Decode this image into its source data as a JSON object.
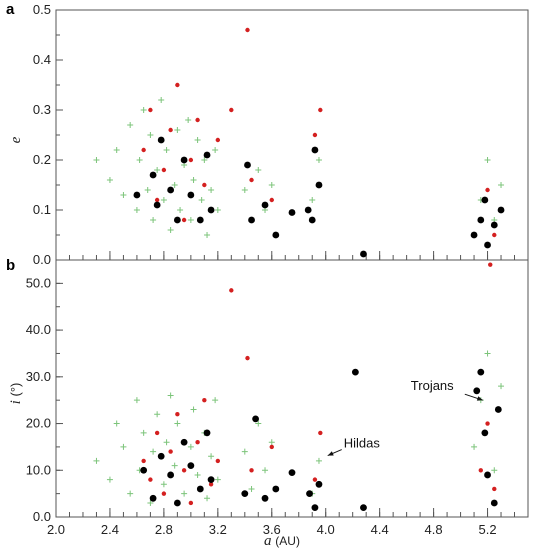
{
  "chart_data": [
    {
      "type": "scatter",
      "panel_label": "a",
      "ylabel": "e",
      "xlim": [
        2.0,
        5.5
      ],
      "ylim": [
        0.0,
        0.5
      ],
      "yticks": [
        "0.0",
        "0.1",
        "0.2",
        "0.3",
        "0.4",
        "0.5"
      ],
      "series": [
        {
          "color": "#7cc47a",
          "marker": "plus",
          "points": [
            [
              2.3,
              0.2
            ],
            [
              2.4,
              0.16
            ],
            [
              2.45,
              0.22
            ],
            [
              2.5,
              0.13
            ],
            [
              2.55,
              0.27
            ],
            [
              2.6,
              0.1
            ],
            [
              2.62,
              0.2
            ],
            [
              2.65,
              0.3
            ],
            [
              2.68,
              0.14
            ],
            [
              2.7,
              0.25
            ],
            [
              2.72,
              0.08
            ],
            [
              2.75,
              0.18
            ],
            [
              2.78,
              0.32
            ],
            [
              2.8,
              0.12
            ],
            [
              2.82,
              0.22
            ],
            [
              2.85,
              0.06
            ],
            [
              2.88,
              0.15
            ],
            [
              2.9,
              0.26
            ],
            [
              2.92,
              0.1
            ],
            [
              2.95,
              0.19
            ],
            [
              2.98,
              0.28
            ],
            [
              3.0,
              0.08
            ],
            [
              3.02,
              0.16
            ],
            [
              3.05,
              0.24
            ],
            [
              3.08,
              0.12
            ],
            [
              3.1,
              0.2
            ],
            [
              3.12,
              0.05
            ],
            [
              3.15,
              0.14
            ],
            [
              3.18,
              0.22
            ],
            [
              3.2,
              0.1
            ],
            [
              3.4,
              0.14
            ],
            [
              3.45,
              0.08
            ],
            [
              3.5,
              0.18
            ],
            [
              3.55,
              0.1
            ],
            [
              3.6,
              0.15
            ],
            [
              3.9,
              0.12
            ],
            [
              3.95,
              0.2
            ],
            [
              5.1,
              0.05
            ],
            [
              5.15,
              0.12
            ],
            [
              5.2,
              0.2
            ],
            [
              5.25,
              0.08
            ],
            [
              5.3,
              0.15
            ]
          ]
        },
        {
          "color": "#d42020",
          "marker": "dot",
          "points": [
            [
              2.65,
              0.22
            ],
            [
              2.7,
              0.3
            ],
            [
              2.75,
              0.12
            ],
            [
              2.8,
              0.18
            ],
            [
              2.85,
              0.26
            ],
            [
              2.9,
              0.35
            ],
            [
              2.95,
              0.08
            ],
            [
              3.0,
              0.2
            ],
            [
              3.05,
              0.28
            ],
            [
              3.1,
              0.15
            ],
            [
              3.15,
              0.1
            ],
            [
              3.2,
              0.24
            ],
            [
              3.3,
              0.3
            ],
            [
              3.42,
              0.46
            ],
            [
              3.45,
              0.16
            ],
            [
              3.6,
              0.12
            ],
            [
              3.92,
              0.25
            ],
            [
              3.96,
              0.3
            ],
            [
              5.15,
              0.08
            ],
            [
              5.2,
              0.14
            ],
            [
              5.25,
              0.05
            ]
          ]
        },
        {
          "color": "#000000",
          "marker": "big-dot",
          "points": [
            [
              2.6,
              0.13
            ],
            [
              2.72,
              0.17
            ],
            [
              2.75,
              0.11
            ],
            [
              2.78,
              0.24
            ],
            [
              2.85,
              0.14
            ],
            [
              2.9,
              0.08
            ],
            [
              2.95,
              0.2
            ],
            [
              3.0,
              0.13
            ],
            [
              3.07,
              0.08
            ],
            [
              3.12,
              0.21
            ],
            [
              3.15,
              0.1
            ],
            [
              3.42,
              0.19
            ],
            [
              3.45,
              0.08
            ],
            [
              3.55,
              0.11
            ],
            [
              3.63,
              0.05
            ],
            [
              3.75,
              0.095
            ],
            [
              3.87,
              0.1
            ],
            [
              3.9,
              0.08
            ],
            [
              3.92,
              0.22
            ],
            [
              3.95,
              0.15
            ],
            [
              4.28,
              0.012
            ],
            [
              5.1,
              0.05
            ],
            [
              5.15,
              0.08
            ],
            [
              5.18,
              0.12
            ],
            [
              5.2,
              0.03
            ],
            [
              5.25,
              0.07
            ],
            [
              5.3,
              0.1
            ]
          ]
        }
      ]
    },
    {
      "type": "scatter",
      "panel_label": "b",
      "xlabel_var": "a",
      "xlabel_unit": "(AU)",
      "ylabel_var": "i",
      "ylabel_unit": "(°)",
      "xlim": [
        2.0,
        5.5
      ],
      "ylim": [
        0.0,
        55.0
      ],
      "xticks": [
        "2.0",
        "2.4",
        "2.8",
        "3.2",
        "3.6",
        "4.0",
        "4.4",
        "4.8",
        "5.2"
      ],
      "yticks": [
        "0.0",
        "10.0",
        "20.0",
        "30.0",
        "40.0",
        "50.0"
      ],
      "annotations": [
        {
          "text": "Hildas",
          "x": 4.0,
          "y": 14.0
        },
        {
          "text": "Trojans",
          "x": 5.15,
          "y": 25.0
        }
      ],
      "series": [
        {
          "color": "#7cc47a",
          "marker": "plus",
          "points": [
            [
              2.3,
              12
            ],
            [
              2.4,
              8
            ],
            [
              2.45,
              20
            ],
            [
              2.5,
              15
            ],
            [
              2.55,
              5
            ],
            [
              2.6,
              25
            ],
            [
              2.62,
              10
            ],
            [
              2.65,
              18
            ],
            [
              2.7,
              3
            ],
            [
              2.72,
              14
            ],
            [
              2.75,
              22
            ],
            [
              2.8,
              7
            ],
            [
              2.82,
              16
            ],
            [
              2.85,
              26
            ],
            [
              2.88,
              11
            ],
            [
              2.9,
              20
            ],
            [
              2.95,
              5
            ],
            [
              3.0,
              15
            ],
            [
              3.02,
              23
            ],
            [
              3.05,
              9
            ],
            [
              3.1,
              18
            ],
            [
              3.12,
              4
            ],
            [
              3.15,
              13
            ],
            [
              3.18,
              25
            ],
            [
              3.2,
              8
            ],
            [
              3.4,
              14
            ],
            [
              3.45,
              6
            ],
            [
              3.5,
              20
            ],
            [
              3.55,
              10
            ],
            [
              3.6,
              16
            ],
            [
              3.9,
              5
            ],
            [
              3.95,
              12
            ],
            [
              5.1,
              15
            ],
            [
              5.15,
              25
            ],
            [
              5.2,
              35
            ],
            [
              5.25,
              10
            ],
            [
              5.3,
              28
            ]
          ]
        },
        {
          "color": "#d42020",
          "marker": "dot",
          "points": [
            [
              2.65,
              12
            ],
            [
              2.7,
              8
            ],
            [
              2.75,
              18
            ],
            [
              2.8,
              5
            ],
            [
              2.85,
              14
            ],
            [
              2.9,
              22
            ],
            [
              2.95,
              10
            ],
            [
              3.0,
              3
            ],
            [
              3.05,
              16
            ],
            [
              3.1,
              25
            ],
            [
              3.15,
              7
            ],
            [
              3.2,
              12
            ],
            [
              3.3,
              48.5
            ],
            [
              3.42,
              34
            ],
            [
              3.45,
              10
            ],
            [
              3.6,
              15
            ],
            [
              3.92,
              8
            ],
            [
              3.96,
              18
            ],
            [
              5.15,
              10
            ],
            [
              5.2,
              20
            ],
            [
              5.22,
              54
            ],
            [
              5.25,
              6
            ]
          ]
        },
        {
          "color": "#000000",
          "marker": "big-dot",
          "points": [
            [
              2.65,
              10
            ],
            [
              2.72,
              4
            ],
            [
              2.78,
              13
            ],
            [
              2.85,
              9
            ],
            [
              2.9,
              3
            ],
            [
              2.95,
              16
            ],
            [
              3.0,
              11
            ],
            [
              3.07,
              6
            ],
            [
              3.12,
              18
            ],
            [
              3.15,
              8
            ],
            [
              3.4,
              5
            ],
            [
              3.48,
              21
            ],
            [
              3.55,
              4
            ],
            [
              3.63,
              6
            ],
            [
              3.75,
              9.5
            ],
            [
              3.88,
              5
            ],
            [
              3.92,
              2
            ],
            [
              3.95,
              7
            ],
            [
              4.22,
              31
            ],
            [
              4.28,
              2
            ],
            [
              5.12,
              27
            ],
            [
              5.15,
              31
            ],
            [
              5.18,
              18
            ],
            [
              5.2,
              9
            ],
            [
              5.25,
              3
            ],
            [
              5.28,
              23
            ]
          ]
        }
      ]
    }
  ]
}
